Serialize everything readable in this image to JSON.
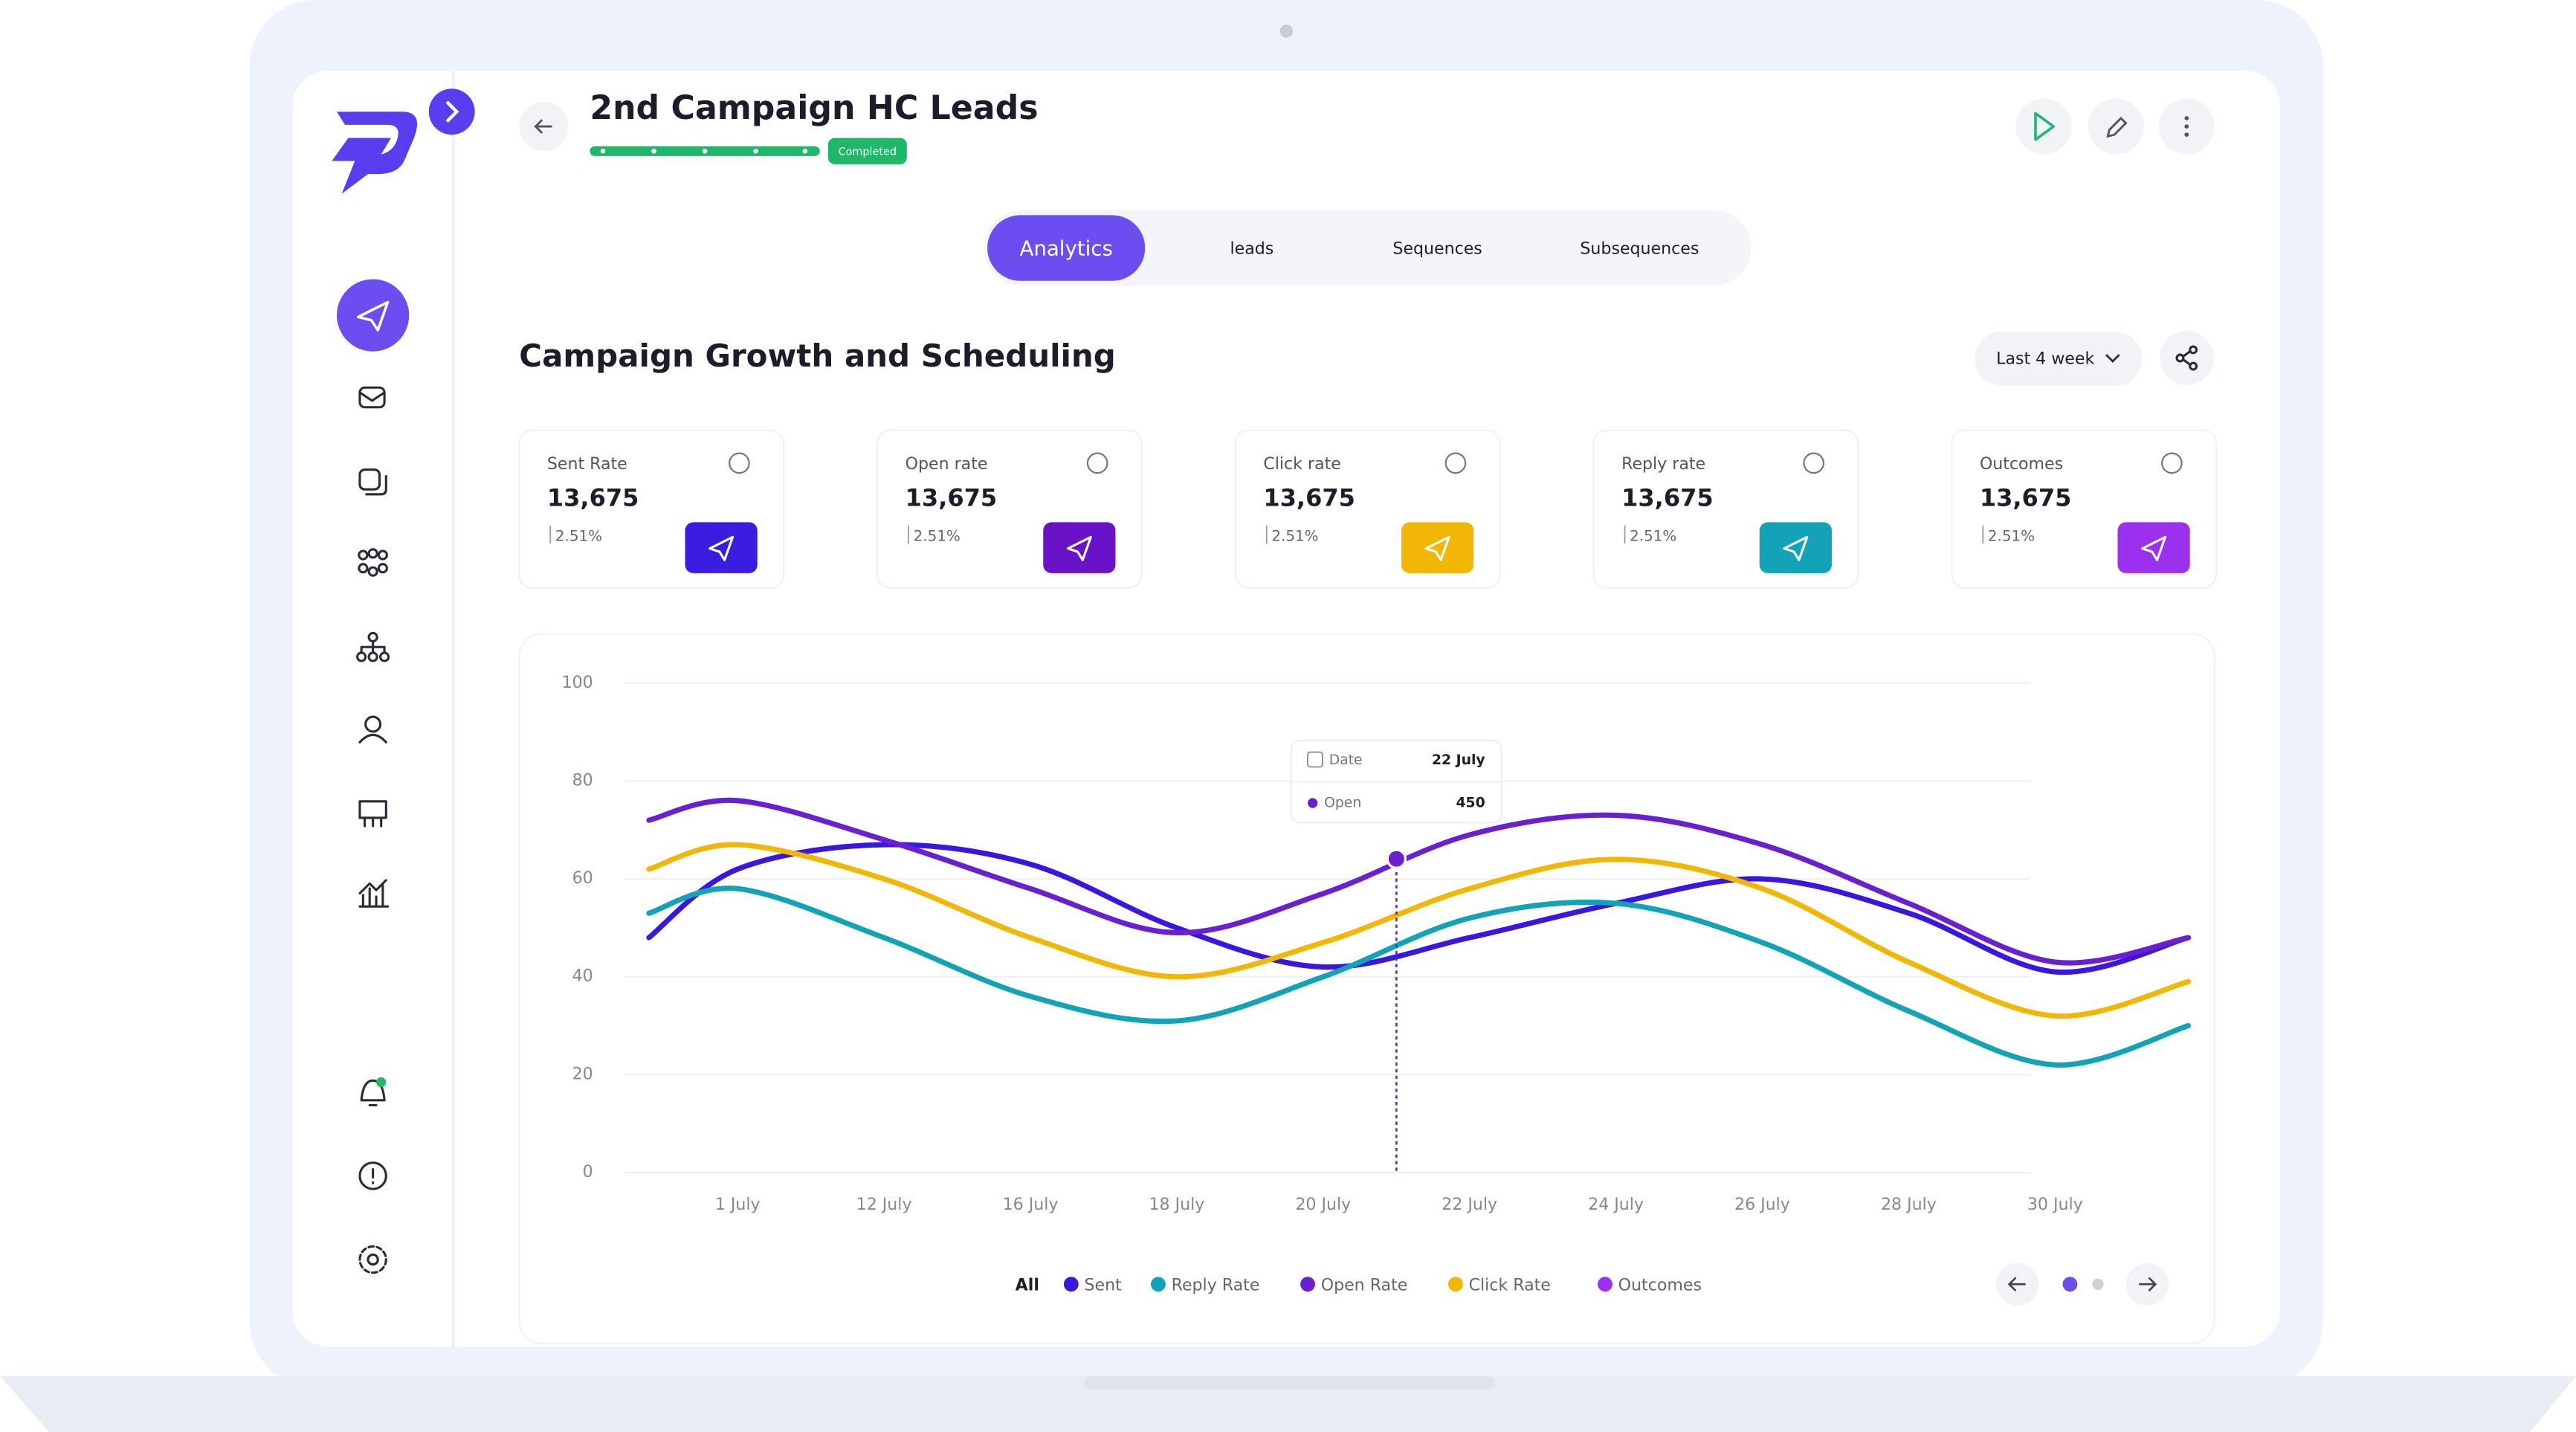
{
  "header": {
    "title": "2nd Campaign HC Leads",
    "status": "Completed"
  },
  "tabs": [
    "Analytics",
    "leads",
    "Sequences",
    "Subsequences"
  ],
  "section": {
    "title": "Campaign Growth and Scheduling",
    "filter": "Last 4 week"
  },
  "stats": [
    {
      "label": "Sent Rate",
      "value": "13,675",
      "change": "2.51%",
      "color": "#3a1de0"
    },
    {
      "label": "Open rate",
      "value": "13,675",
      "change": "2.51%",
      "color": "#6a12c8"
    },
    {
      "label": "Click rate",
      "value": "13,675",
      "change": "2.51%",
      "color": "#f2b705"
    },
    {
      "label": "Reply rate",
      "value": "13,675",
      "change": "2.51%",
      "color": "#12a3b8"
    },
    {
      "label": "Outcomes",
      "value": "13,675",
      "change": "2.51%",
      "color": "#9b30ef"
    }
  ],
  "chart_data": {
    "type": "line",
    "categories": [
      null,
      "1 July",
      "12 July",
      "16 July",
      "18 July",
      "20 July",
      "22 July",
      "24 July",
      "26 July",
      "28 July",
      "30 July",
      null
    ],
    "series": [
      {
        "name": "Sent",
        "color": "#3a16e0",
        "values": [
          48,
          62,
          67,
          63,
          50,
          42,
          48,
          55,
          60,
          53,
          41,
          48
        ]
      },
      {
        "name": "Reply Rate",
        "color": "#12a3b8",
        "values": [
          53,
          58,
          48,
          36,
          31,
          40,
          52,
          55,
          47,
          33,
          22,
          30
        ]
      },
      {
        "name": "Open Rate",
        "color": "#6a1fd0",
        "values": [
          72,
          76,
          68,
          58,
          49,
          57,
          69,
          73,
          67,
          55,
          43,
          48
        ]
      },
      {
        "name": "Click Rate",
        "color": "#f2b705",
        "values": [
          62,
          67,
          60,
          48,
          40,
          47,
          58,
          64,
          58,
          43,
          32,
          39
        ]
      },
      {
        "name": "Outcomes",
        "color": "#9b30ef",
        "values": [
          null,
          null,
          null,
          null,
          null,
          null,
          null,
          null,
          null,
          null,
          null,
          null
        ]
      }
    ],
    "ylim": [
      0,
      100
    ],
    "yticks": [
      0,
      20,
      40,
      60,
      80,
      100
    ],
    "grid": true,
    "legend_all": "All",
    "tooltip": {
      "date_label": "Date",
      "date": "22 July",
      "series_label": "Open",
      "value": 450
    }
  }
}
